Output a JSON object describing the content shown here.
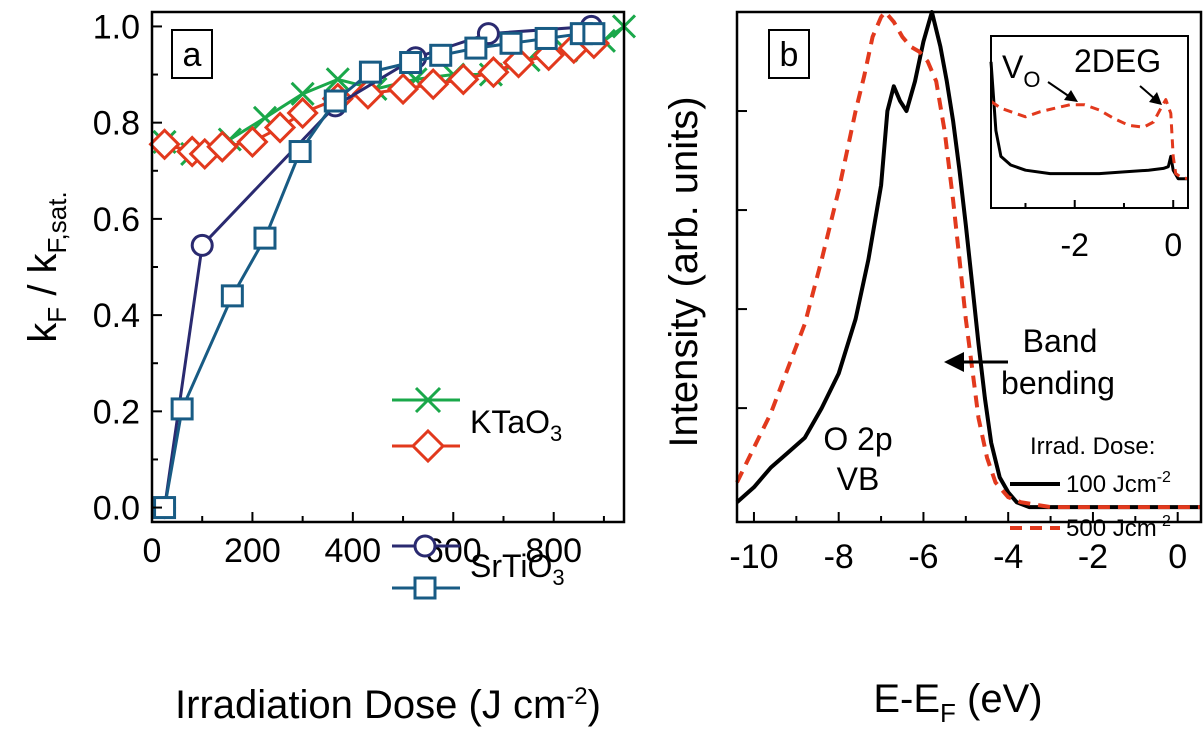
{
  "colors": {
    "ktao3_cross": "#1aa84a",
    "ktao3_diamond": "#e2391d",
    "sto_circle": "#2a2a70",
    "sto_square": "#185b84",
    "spectrum_100": "#000000",
    "spectrum_500": "#e2391d"
  },
  "chart_data": [
    {
      "type": "line",
      "panel_label": "a",
      "xlabel": "Irradiation Dose (J cm",
      "xlabel_sup": "-2",
      "xlabel_close": ")",
      "ylabel_main": "k",
      "ylabel_sub1": "F",
      "ylabel_mid": " / k",
      "ylabel_sub2": "F,sat.",
      "xlim": [
        0,
        940
      ],
      "ylim": [
        -0.03,
        1.03
      ],
      "xticks": [
        "0",
        "200",
        "400",
        "600",
        "800"
      ],
      "yticks": [
        "0.0",
        "0.2",
        "0.4",
        "0.6",
        "0.8",
        "1.0"
      ],
      "legend": {
        "ktao3": {
          "prefix": "KTaO",
          "sub": "3"
        },
        "srtio3": {
          "prefix": "SrTiO",
          "sub": "3"
        }
      },
      "series": [
        {
          "group": "KTaO3",
          "marker": "x",
          "color": "#1aa84a",
          "x": [
            25,
            80,
            155,
            225,
            300,
            370,
            445,
            525,
            600,
            675,
            750,
            825,
            900,
            940
          ],
          "y": [
            0.76,
            0.735,
            0.765,
            0.81,
            0.86,
            0.89,
            0.87,
            0.89,
            0.9,
            0.9,
            0.93,
            0.95,
            0.97,
            1.0
          ]
        },
        {
          "group": "KTaO3",
          "marker": "diamond",
          "color": "#e2391d",
          "x": [
            25,
            80,
            105,
            140,
            200,
            255,
            300,
            370,
            430,
            500,
            560,
            620,
            680,
            730,
            790,
            840,
            880
          ],
          "y": [
            0.755,
            0.74,
            0.735,
            0.75,
            0.76,
            0.79,
            0.82,
            0.85,
            0.86,
            0.87,
            0.88,
            0.89,
            0.905,
            0.925,
            0.94,
            0.955,
            0.965
          ]
        },
        {
          "group": "SrTiO3",
          "marker": "circle",
          "color": "#2a2a70",
          "x": [
            25,
            100,
            365,
            525,
            670,
            875
          ],
          "y": [
            0.0,
            0.545,
            0.835,
            0.935,
            0.985,
            1.0
          ]
        },
        {
          "group": "SrTiO3",
          "marker": "square",
          "color": "#185b84",
          "x": [
            25,
            60,
            160,
            225,
            295,
            365,
            435,
            515,
            575,
            645,
            715,
            785,
            855,
            880
          ],
          "y": [
            0.0,
            0.205,
            0.44,
            0.56,
            0.74,
            0.845,
            0.905,
            0.925,
            0.94,
            0.955,
            0.965,
            0.975,
            0.985,
            0.985
          ]
        }
      ]
    },
    {
      "type": "line",
      "panel_label": "b",
      "xlabel_main": "E-E",
      "xlabel_sub": "F",
      "xlabel_unit": " (eV)",
      "ylabel": "Intensity (arb. units)",
      "xlim": [
        -10.4,
        0.55
      ],
      "ylim": [
        -0.03,
        1.0
      ],
      "xticks": [
        "-10",
        "-8",
        "-6",
        "-4",
        "-2",
        "0"
      ],
      "annotations": {
        "vb_line1": "O 2p",
        "vb_line2": "VB",
        "band_line1": "Band",
        "band_line2": "bending"
      },
      "legend": {
        "title": "Irrad. Dose:",
        "dose_100": {
          "value": "100 Jcm",
          "sup": "-2"
        },
        "dose_500": {
          "value": "500 Jcm",
          "sup": "-2"
        }
      },
      "series": [
        {
          "dose": "100",
          "style": "solid",
          "color": "#000000",
          "x": [
            -10.4,
            -10.0,
            -9.6,
            -9.2,
            -8.8,
            -8.4,
            -8.0,
            -7.6,
            -7.3,
            -7.0,
            -6.85,
            -6.7,
            -6.55,
            -6.4,
            -6.2,
            -6.0,
            -5.8,
            -5.6,
            -5.45,
            -5.3,
            -5.15,
            -5.0,
            -4.85,
            -4.7,
            -4.55,
            -4.4,
            -4.2,
            -4.0,
            -3.8,
            -3.5,
            -3.0,
            0.55
          ],
          "y": [
            0.01,
            0.04,
            0.08,
            0.11,
            0.14,
            0.2,
            0.27,
            0.38,
            0.5,
            0.65,
            0.8,
            0.85,
            0.82,
            0.8,
            0.86,
            0.94,
            1.0,
            0.93,
            0.86,
            0.78,
            0.68,
            0.57,
            0.45,
            0.33,
            0.22,
            0.13,
            0.06,
            0.03,
            0.01,
            0.0,
            0.0,
            0.0
          ]
        },
        {
          "dose": "500",
          "style": "dashed",
          "color": "#e2391d",
          "x": [
            -10.4,
            -10.0,
            -9.6,
            -9.2,
            -8.8,
            -8.4,
            -8.0,
            -7.6,
            -7.4,
            -7.2,
            -7.0,
            -6.9,
            -6.7,
            -6.5,
            -6.3,
            -6.1,
            -5.9,
            -5.7,
            -5.5,
            -5.3,
            -5.15,
            -5.0,
            -4.85,
            -4.7,
            -4.5,
            -4.3,
            -4.0,
            -3.7,
            -3.0,
            0.55
          ],
          "y": [
            0.05,
            0.12,
            0.19,
            0.28,
            0.37,
            0.5,
            0.64,
            0.8,
            0.87,
            0.95,
            0.99,
            1.0,
            0.98,
            0.95,
            0.93,
            0.92,
            0.9,
            0.86,
            0.76,
            0.62,
            0.5,
            0.38,
            0.28,
            0.18,
            0.1,
            0.05,
            0.02,
            0.01,
            0.0,
            0.0
          ]
        }
      ]
    },
    {
      "type": "line",
      "panel_label": "inset",
      "xlim": [
        -3.7,
        0.3
      ],
      "ylim": [
        0,
        1
      ],
      "xticks": [
        "-2",
        "0"
      ],
      "annotations": {
        "vo_main": "V",
        "vo_sub": "O",
        "twodeg": "2DEG"
      },
      "series": [
        {
          "dose": "100",
          "style": "solid",
          "color": "#000000",
          "x": [
            -3.7,
            -3.6,
            -3.5,
            -3.3,
            -3.0,
            -2.5,
            -2.0,
            -1.5,
            -1.0,
            -0.5,
            -0.2,
            -0.1,
            -0.05,
            0.0,
            0.1,
            0.3
          ],
          "y": [
            0.85,
            0.45,
            0.3,
            0.25,
            0.22,
            0.2,
            0.2,
            0.2,
            0.21,
            0.22,
            0.23,
            0.24,
            0.3,
            0.22,
            0.17,
            0.17
          ]
        },
        {
          "dose": "500",
          "style": "dashed",
          "color": "#e2391d",
          "x": [
            -3.7,
            -3.5,
            -3.2,
            -3.0,
            -2.7,
            -2.4,
            -2.1,
            -1.8,
            -1.5,
            -1.2,
            -0.9,
            -0.6,
            -0.4,
            -0.25,
            -0.15,
            -0.05,
            0.0,
            0.05,
            0.15,
            0.3
          ],
          "y": [
            0.62,
            0.58,
            0.55,
            0.53,
            0.56,
            0.58,
            0.6,
            0.6,
            0.57,
            0.52,
            0.48,
            0.47,
            0.5,
            0.58,
            0.63,
            0.55,
            0.3,
            0.2,
            0.18,
            0.17
          ]
        }
      ]
    }
  ]
}
